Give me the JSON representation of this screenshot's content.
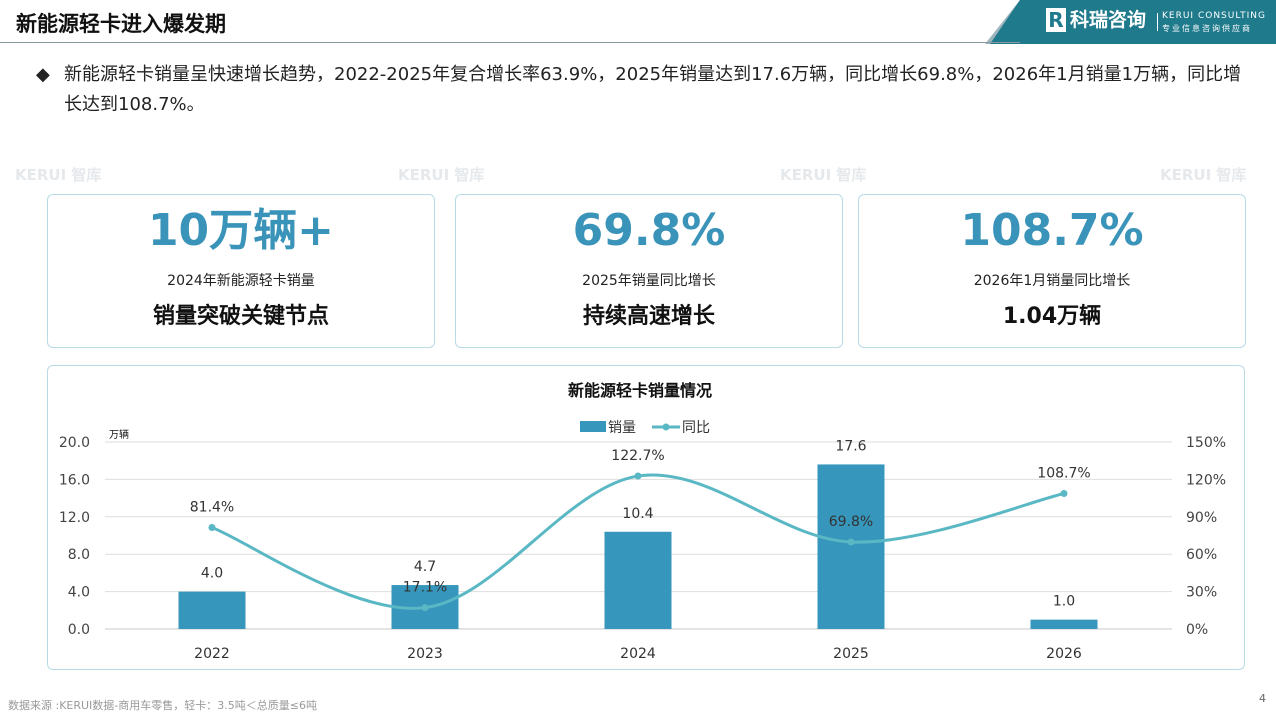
{
  "header": {
    "title": "新能源轻卡进入爆发期",
    "brand_cn": "科瑞咨询",
    "brand_en": "KERUI CONSULTING",
    "brand_tag": "专业信息咨询供应商",
    "logo_letter": "R"
  },
  "bullet": {
    "icon": "◆",
    "text": "新能源轻卡销量呈快速增长趋势，2022-2025年复合增长率63.9%，2025年销量达到17.6万辆，同比增长69.8%，2026年1月销量1万辆，同比增长达到108.7%。"
  },
  "cards": [
    {
      "big": "10万辆+",
      "sub": "2024年新能源轻卡销量",
      "em": "销量突破关键节点"
    },
    {
      "big": "69.8%",
      "sub": "2025年销量同比增长",
      "em": "持续高速增长"
    },
    {
      "big": "108.7%",
      "sub": "2026年1月销量同比增长",
      "em": "1.04万辆"
    }
  ],
  "watermark": "KERUI 智库",
  "chart_data": {
    "type": "bar",
    "title": "新能源轻卡销量情况",
    "categories": [
      "2022",
      "2023",
      "2024",
      "2025",
      "2026"
    ],
    "series": [
      {
        "name": "销量",
        "type": "bar",
        "axis": "left",
        "values": [
          4.0,
          4.7,
          10.4,
          17.6,
          1.0
        ],
        "labels": [
          "4.0",
          "4.7",
          "10.4",
          "17.6",
          "1.0"
        ],
        "color": "#3696bc"
      },
      {
        "name": "同比",
        "type": "line",
        "axis": "right",
        "values": [
          81.4,
          17.1,
          122.7,
          69.8,
          108.7
        ],
        "labels": [
          "81.4%",
          "17.1%",
          "122.7%",
          "69.8%",
          "108.7%"
        ],
        "color": "#5ab8c4"
      }
    ],
    "ylabel": "万辆",
    "ylim": [
      0,
      20
    ],
    "yticks": [
      "0.0",
      "4.0",
      "8.0",
      "12.0",
      "16.0",
      "20.0"
    ],
    "y2lim": [
      0,
      150
    ],
    "y2ticks": [
      "0%",
      "30%",
      "60%",
      "90%",
      "120%",
      "150%"
    ],
    "legend": "top-center",
    "grid": true
  },
  "footer": {
    "source": "数据来源 :KERUI数据-商用车零售，轻卡：3.5吨＜总质量≤6吨",
    "page": "4"
  }
}
